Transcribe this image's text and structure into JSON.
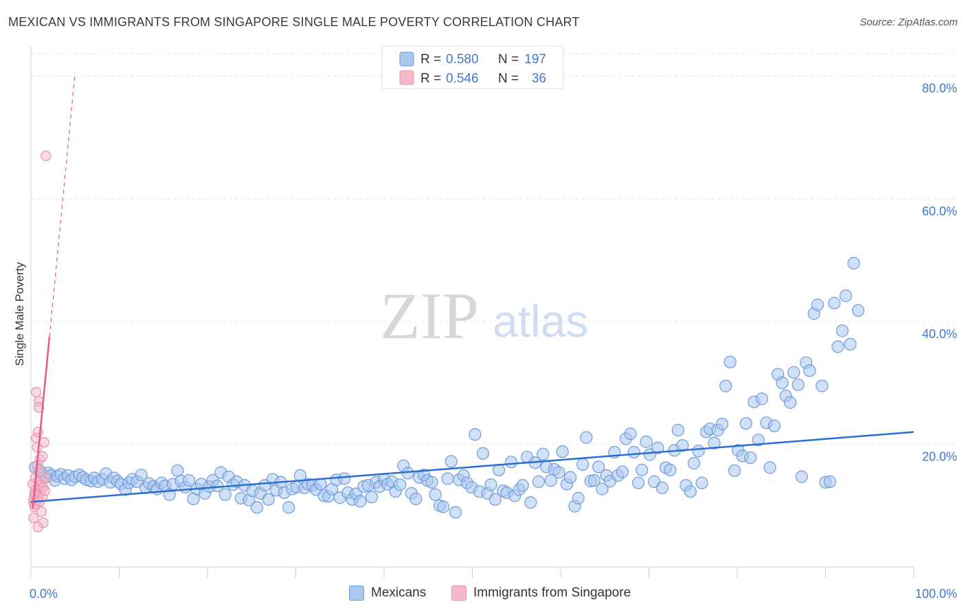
{
  "header": {
    "title": "MEXICAN VS IMMIGRANTS FROM SINGAPORE SINGLE MALE POVERTY CORRELATION CHART",
    "source": "Source: ZipAtlas.com"
  },
  "watermark": {
    "zip": "ZIP",
    "atlas": "atlas"
  },
  "colors": {
    "blue_fill": "#a9c7ef",
    "blue_stroke": "#6f9bdc",
    "blue_line": "#2a6fd0",
    "pink_fill": "#f6b8cb",
    "pink_stroke": "#e890ac",
    "pink_line": "#e8578a",
    "axis_label": "#3f78cf",
    "grid": "#e6e6e6"
  },
  "legend_top": {
    "rows": [
      {
        "r_label": "R =",
        "r_value": "0.580",
        "n_label": "N =",
        "n_value": "197"
      },
      {
        "r_label": "R =",
        "r_value": "0.546",
        "n_label": "N =",
        "n_value": "36"
      }
    ]
  },
  "chart_data": {
    "type": "scatter",
    "title": "MEXICAN VS IMMIGRANTS FROM SINGAPORE SINGLE MALE POVERTY CORRELATION CHART",
    "xlabel": "",
    "ylabel": "Single Male Poverty",
    "xlim": [
      0,
      100
    ],
    "ylim": [
      0,
      84
    ],
    "x_ticks": [
      "0.0%",
      "100.0%"
    ],
    "y_ticks": [
      {
        "value": 20,
        "label": "20.0%"
      },
      {
        "value": 40,
        "label": "40.0%"
      },
      {
        "value": 60,
        "label": "60.0%"
      },
      {
        "value": 80,
        "label": "80.0%"
      }
    ],
    "grid": true,
    "legend_position": "bottom",
    "series": [
      {
        "name": "Mexicans",
        "R": 0.58,
        "N": 197,
        "trend": {
          "x": [
            0,
            100
          ],
          "y": [
            10.6,
            22.0
          ]
        },
        "points": [
          [
            0.5,
            16.2
          ],
          [
            1.0,
            15.7
          ],
          [
            1.3,
            15.0
          ],
          [
            1.6,
            14.8
          ],
          [
            2.0,
            15.3
          ],
          [
            2.3,
            14.9
          ],
          [
            2.7,
            14.1
          ],
          [
            3.0,
            14.8
          ],
          [
            3.4,
            15.1
          ],
          [
            3.8,
            14.4
          ],
          [
            4.2,
            14.9
          ],
          [
            4.6,
            14.2
          ],
          [
            5.0,
            14.7
          ],
          [
            5.5,
            15.0
          ],
          [
            5.9,
            14.6
          ],
          [
            6.3,
            14.2
          ],
          [
            6.8,
            14.0
          ],
          [
            7.2,
            14.5
          ],
          [
            7.6,
            13.9
          ],
          [
            8.1,
            14.3
          ],
          [
            8.5,
            15.2
          ],
          [
            9.0,
            13.8
          ],
          [
            9.4,
            14.5
          ],
          [
            9.8,
            14.0
          ],
          [
            10.2,
            13.5
          ],
          [
            10.7,
            12.6
          ],
          [
            11.1,
            13.7
          ],
          [
            11.5,
            14.3
          ],
          [
            12.0,
            13.9
          ],
          [
            12.5,
            15.0
          ],
          [
            13.0,
            12.9
          ],
          [
            13.4,
            13.6
          ],
          [
            13.9,
            13.1
          ],
          [
            14.3,
            12.7
          ],
          [
            14.8,
            13.7
          ],
          [
            15.2,
            13.2
          ],
          [
            15.7,
            11.8
          ],
          [
            16.1,
            13.5
          ],
          [
            16.6,
            15.7
          ],
          [
            17.0,
            14.0
          ],
          [
            17.5,
            13.0
          ],
          [
            17.9,
            14.1
          ],
          [
            18.4,
            11.1
          ],
          [
            18.8,
            12.7
          ],
          [
            19.3,
            13.5
          ],
          [
            19.7,
            12.0
          ],
          [
            20.2,
            13.1
          ],
          [
            20.6,
            14.1
          ],
          [
            21.1,
            13.2
          ],
          [
            21.5,
            15.4
          ],
          [
            22.0,
            11.8
          ],
          [
            22.4,
            14.7
          ],
          [
            22.9,
            13.4
          ],
          [
            23.3,
            13.9
          ],
          [
            23.8,
            11.2
          ],
          [
            24.2,
            13.3
          ],
          [
            24.7,
            10.9
          ],
          [
            25.1,
            12.4
          ],
          [
            25.6,
            9.7
          ],
          [
            26.0,
            12.0
          ],
          [
            26.5,
            13.3
          ],
          [
            26.9,
            11.0
          ],
          [
            27.4,
            14.3
          ],
          [
            27.8,
            12.5
          ],
          [
            28.3,
            13.8
          ],
          [
            28.7,
            12.1
          ],
          [
            29.2,
            9.7
          ],
          [
            29.6,
            12.7
          ],
          [
            30.1,
            13.0
          ],
          [
            30.5,
            14.9
          ],
          [
            31.0,
            12.9
          ],
          [
            31.4,
            13.5
          ],
          [
            31.9,
            13.3
          ],
          [
            32.3,
            12.6
          ],
          [
            32.8,
            13.5
          ],
          [
            33.2,
            11.6
          ],
          [
            33.7,
            11.5
          ],
          [
            34.1,
            12.7
          ],
          [
            34.6,
            14.2
          ],
          [
            35.0,
            11.3
          ],
          [
            35.5,
            14.4
          ],
          [
            35.9,
            12.1
          ],
          [
            36.4,
            11.0
          ],
          [
            36.8,
            11.9
          ],
          [
            37.3,
            10.7
          ],
          [
            37.7,
            13.1
          ],
          [
            38.2,
            13.3
          ],
          [
            38.6,
            11.4
          ],
          [
            39.1,
            13.8
          ],
          [
            39.5,
            13.1
          ],
          [
            40.0,
            14.3
          ],
          [
            40.4,
            13.5
          ],
          [
            40.9,
            13.9
          ],
          [
            41.3,
            12.3
          ],
          [
            41.8,
            13.4
          ],
          [
            42.2,
            16.5
          ],
          [
            42.7,
            15.3
          ],
          [
            43.1,
            12.0
          ],
          [
            43.6,
            11.1
          ],
          [
            44.0,
            14.6
          ],
          [
            44.5,
            15.0
          ],
          [
            44.9,
            14.1
          ],
          [
            45.4,
            13.8
          ],
          [
            45.8,
            11.8
          ],
          [
            46.3,
            10.0
          ],
          [
            46.7,
            9.8
          ],
          [
            47.2,
            14.4
          ],
          [
            47.6,
            17.2
          ],
          [
            48.1,
            8.9
          ],
          [
            48.5,
            14.2
          ],
          [
            49.0,
            14.9
          ],
          [
            49.4,
            13.7
          ],
          [
            49.9,
            13.0
          ],
          [
            50.3,
            21.6
          ],
          [
            50.8,
            12.3
          ],
          [
            51.2,
            18.5
          ],
          [
            51.7,
            12.0
          ],
          [
            52.1,
            13.4
          ],
          [
            52.6,
            11.0
          ],
          [
            53.0,
            15.8
          ],
          [
            53.5,
            12.4
          ],
          [
            53.9,
            12.1
          ],
          [
            54.4,
            17.1
          ],
          [
            54.8,
            11.6
          ],
          [
            55.3,
            12.6
          ],
          [
            55.7,
            13.3
          ],
          [
            56.2,
            17.9
          ],
          [
            56.6,
            10.5
          ],
          [
            57.1,
            17.0
          ],
          [
            57.5,
            13.9
          ],
          [
            58.0,
            18.4
          ],
          [
            58.4,
            16.3
          ],
          [
            58.9,
            14.1
          ],
          [
            59.3,
            15.9
          ],
          [
            59.8,
            15.4
          ],
          [
            60.2,
            18.8
          ],
          [
            60.7,
            13.5
          ],
          [
            61.1,
            14.6
          ],
          [
            61.6,
            9.9
          ],
          [
            62.0,
            11.2
          ],
          [
            62.5,
            16.7
          ],
          [
            62.9,
            21.1
          ],
          [
            63.4,
            14.0
          ],
          [
            63.8,
            14.1
          ],
          [
            64.3,
            16.3
          ],
          [
            64.7,
            12.7
          ],
          [
            65.2,
            14.9
          ],
          [
            65.6,
            14.0
          ],
          [
            66.1,
            18.7
          ],
          [
            66.5,
            14.9
          ],
          [
            67.0,
            15.5
          ],
          [
            67.4,
            20.9
          ],
          [
            67.9,
            21.7
          ],
          [
            68.3,
            18.7
          ],
          [
            68.8,
            13.7
          ],
          [
            69.2,
            15.8
          ],
          [
            69.7,
            20.4
          ],
          [
            70.1,
            18.3
          ],
          [
            70.6,
            13.9
          ],
          [
            71.0,
            19.4
          ],
          [
            71.5,
            12.9
          ],
          [
            71.9,
            16.2
          ],
          [
            72.4,
            15.8
          ],
          [
            72.9,
            19.0
          ],
          [
            73.3,
            22.3
          ],
          [
            73.8,
            19.8
          ],
          [
            74.2,
            13.3
          ],
          [
            74.7,
            12.3
          ],
          [
            75.1,
            16.9
          ],
          [
            75.6,
            18.9
          ],
          [
            76.0,
            13.7
          ],
          [
            76.5,
            22.0
          ],
          [
            76.9,
            22.5
          ],
          [
            77.4,
            20.2
          ],
          [
            77.8,
            22.3
          ],
          [
            78.3,
            23.3
          ],
          [
            78.7,
            29.5
          ],
          [
            79.2,
            33.4
          ],
          [
            79.7,
            15.7
          ],
          [
            80.1,
            19.0
          ],
          [
            80.6,
            18.1
          ],
          [
            81.0,
            23.4
          ],
          [
            81.5,
            17.8
          ],
          [
            81.9,
            26.9
          ],
          [
            82.4,
            20.7
          ],
          [
            82.8,
            27.4
          ],
          [
            83.3,
            23.5
          ],
          [
            83.7,
            16.2
          ],
          [
            84.2,
            23.0
          ],
          [
            84.6,
            31.4
          ],
          [
            85.1,
            30.0
          ],
          [
            85.5,
            27.9
          ],
          [
            86.0,
            26.8
          ],
          [
            86.4,
            31.7
          ],
          [
            86.9,
            29.7
          ],
          [
            87.3,
            14.7
          ],
          [
            87.8,
            33.3
          ],
          [
            88.2,
            32.0
          ],
          [
            88.7,
            41.3
          ],
          [
            89.1,
            42.7
          ],
          [
            89.6,
            29.5
          ],
          [
            90.0,
            13.8
          ],
          [
            90.5,
            13.9
          ],
          [
            91.0,
            43.0
          ],
          [
            91.4,
            35.9
          ],
          [
            91.9,
            38.5
          ],
          [
            92.3,
            44.2
          ],
          [
            92.8,
            36.3
          ],
          [
            93.2,
            49.5
          ],
          [
            93.7,
            41.8
          ]
        ]
      },
      {
        "name": "Immigrants from Singapore",
        "R": 0.546,
        "N": 36,
        "trend": {
          "x": [
            0.2,
            2.1
          ],
          "y": [
            9.5,
            37.5
          ]
        },
        "trend_dashed": {
          "x": [
            2.1,
            5.0
          ],
          "y": [
            37.5,
            80.5
          ]
        },
        "points": [
          [
            0.2,
            13.5
          ],
          [
            0.3,
            11.0
          ],
          [
            0.3,
            10.5
          ],
          [
            0.4,
            12.0
          ],
          [
            0.4,
            9.8
          ],
          [
            0.5,
            14.5
          ],
          [
            0.5,
            10.2
          ],
          [
            0.5,
            11.8
          ],
          [
            0.6,
            12.7
          ],
          [
            0.6,
            21.0
          ],
          [
            0.6,
            28.5
          ],
          [
            0.7,
            19.5
          ],
          [
            0.7,
            16.5
          ],
          [
            0.7,
            10.9
          ],
          [
            0.8,
            22.0
          ],
          [
            0.8,
            11.5
          ],
          [
            0.9,
            13.2
          ],
          [
            0.9,
            27.0
          ],
          [
            0.9,
            26.0
          ],
          [
            1.0,
            12.0
          ],
          [
            1.0,
            17.5
          ],
          [
            1.0,
            10.7
          ],
          [
            1.1,
            15.5
          ],
          [
            1.1,
            14.0
          ],
          [
            1.2,
            12.8
          ],
          [
            1.2,
            9.0
          ],
          [
            1.3,
            18.0
          ],
          [
            1.3,
            11.4
          ],
          [
            1.4,
            13.0
          ],
          [
            1.4,
            7.2
          ],
          [
            1.5,
            20.3
          ],
          [
            1.6,
            12.4
          ],
          [
            1.7,
            14.5
          ],
          [
            0.3,
            8.0
          ],
          [
            0.8,
            6.5
          ],
          [
            1.7,
            67.0
          ]
        ]
      }
    ]
  },
  "legend_bottom": [
    {
      "label": "Mexicans"
    },
    {
      "label": "Immigrants from Singapore"
    }
  ]
}
